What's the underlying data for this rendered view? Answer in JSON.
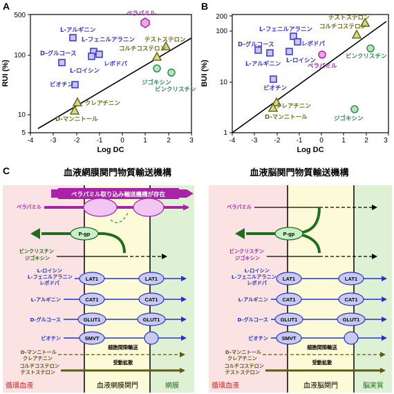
{
  "colors": {
    "blue": "#3333cc",
    "purple": "#aa22aa",
    "green": "#2e8b57",
    "olive": "#6b6b1a",
    "dark_green": "#1f6e1f",
    "circ_bg": "#fbe3e3",
    "barrier_bg": "#fdfad8",
    "tissue_bg": "#dff1d5"
  },
  "panel_a": {
    "letter": "A",
    "xlabel": "Log DC",
    "ylabel": "RUI (%)",
    "xticks": [
      "-4",
      "-3",
      "-2",
      "-1",
      "0",
      "1",
      "2",
      "3"
    ],
    "yticks": [
      "5",
      "10",
      "100",
      "500"
    ],
    "point_labels": {
      "verapamil": "ベラパミル",
      "arginine": "L-アルギニン",
      "phenylalanine": "L-フェニルアラニン",
      "glucose": "D-グルコース",
      "levodopa": "レボドパ",
      "leucine": "L-ロイシン",
      "biotin": "ビオチン",
      "testosterone": "テストステロン",
      "corticosterone": "コルチコステロン",
      "digoxin": "ジゴキシン",
      "vincristine": "ビンクリスチン",
      "creatinine": "クレアチニン",
      "mannitol": "D-マンニトール"
    }
  },
  "panel_b": {
    "letter": "B",
    "xlabel": "Log DC",
    "ylabel": "BUI (%)",
    "xticks": [
      "-4",
      "-3",
      "-2",
      "-1",
      "0",
      "1",
      "2",
      "3"
    ],
    "yticks": [
      "1",
      "10",
      "100",
      "200"
    ],
    "point_labels": {
      "testosterone": "テストステロン",
      "corticosterone": "コルチコステロン",
      "phenylalanine": "L-フェニルアラニン",
      "glucose": "D-グルコース",
      "levodopa": "レボドパ",
      "arginine": "L-アルギニン",
      "leucine": "L-ロイシン",
      "vincristine": "ビンクリスチン",
      "verapamil": "ベラパミル",
      "biotin": "ビオチン",
      "creatinine": "クレアチニン",
      "mannitol": "D-マンニトール",
      "digoxin": "ジゴキシン"
    }
  },
  "panel_c": {
    "letter": "C",
    "title_left": "血液網膜関門物質輸送機構",
    "title_right": "血液脳関門物質輸送機構",
    "banner": "ベラパミル取り込み輸送機構が存在",
    "zones_left": [
      "循環血液",
      "血液網膜関門",
      "網膜"
    ],
    "zones_right": [
      "循環血液",
      "血液脳関門",
      "脳実質"
    ],
    "substrates": {
      "verapamil": "ベラパミル",
      "vinc_dig": [
        "ビンクリスチン",
        "ジゴキシン"
      ],
      "lat1": [
        "L-ロイシン",
        "L-フェニルアラニン",
        "レボドパ"
      ],
      "cat1": "L-アルギニン",
      "glut1": "D-グルコース",
      "smvt": "ビオチン",
      "paracellular": [
        "D-マンニトール",
        "クレアチニン"
      ],
      "passive": [
        "コルチコステロン",
        "テストステロン"
      ]
    },
    "transporters": {
      "pgp": "P-gp",
      "lat1": "LAT1",
      "cat1": "CAT1",
      "glut1": "GLUT1",
      "smvt": "SMVT"
    },
    "routes": {
      "paracellular": "細胞間隙輸送",
      "passive": "受動拡散"
    }
  }
}
